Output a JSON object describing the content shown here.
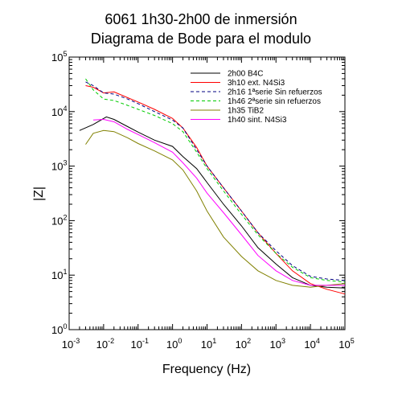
{
  "chart_data": {
    "type": "line",
    "title": "6061 1h30-2h00 de inmersión",
    "subtitle": "Diagrama de Bode para el modulo",
    "xlabel": "Frequency (Hz)",
    "ylabel": "|Z|",
    "xscale": "log",
    "yscale": "log",
    "xlim": [
      0.001,
      100000
    ],
    "ylim": [
      1,
      100000
    ],
    "x_ticks": [
      {
        "base": "10",
        "exp": "-3"
      },
      {
        "base": "10",
        "exp": "-2"
      },
      {
        "base": "10",
        "exp": "-1"
      },
      {
        "base": "10",
        "exp": "0"
      },
      {
        "base": "10",
        "exp": "1"
      },
      {
        "base": "10",
        "exp": "2"
      },
      {
        "base": "10",
        "exp": "3"
      },
      {
        "base": "10",
        "exp": "4"
      },
      {
        "base": "10",
        "exp": "5"
      }
    ],
    "y_ticks": [
      {
        "base": "10",
        "exp": "0"
      },
      {
        "base": "10",
        "exp": "1"
      },
      {
        "base": "10",
        "exp": "2"
      },
      {
        "base": "10",
        "exp": "3"
      },
      {
        "base": "10",
        "exp": "4"
      },
      {
        "base": "10",
        "exp": "5"
      }
    ],
    "grid": false,
    "legend_position": "top-right",
    "series": [
      {
        "name": "2h00 B4C",
        "color": "#000000",
        "dash": "solid",
        "x": [
          0.002,
          0.005,
          0.012,
          0.02,
          0.05,
          0.1,
          0.3,
          1,
          2,
          5,
          10,
          30,
          100,
          300,
          1000,
          3000,
          10000,
          30000,
          100000
        ],
        "y": [
          4500,
          5800,
          8000,
          7200,
          5300,
          4200,
          3000,
          2300,
          1500,
          900,
          500,
          200,
          80,
          32,
          16,
          9,
          6.5,
          6,
          5.8
        ]
      },
      {
        "name": "3h10 ext. N4Si3",
        "color": "#ff0000",
        "dash": "solid",
        "x": [
          0.003,
          0.005,
          0.01,
          0.02,
          0.05,
          0.1,
          0.3,
          1,
          2,
          5,
          10,
          30,
          100,
          300,
          1000,
          3000,
          10000,
          30000,
          100000
        ],
        "y": [
          30000,
          28000,
          22000,
          23000,
          18000,
          15000,
          11000,
          7500,
          5000,
          2200,
          1000,
          400,
          150,
          60,
          25,
          12,
          7,
          5.5,
          4.5
        ]
      },
      {
        "name": "2h16 1ªserie Sin refuerzos",
        "color": "#000080",
        "dash": "dashed",
        "x": [
          0.003,
          0.005,
          0.01,
          0.02,
          0.05,
          0.1,
          0.3,
          1,
          2,
          5,
          10,
          30,
          100,
          300,
          1000,
          3000,
          10000,
          30000,
          100000
        ],
        "y": [
          35000,
          30000,
          22000,
          21000,
          17000,
          14000,
          10000,
          7000,
          5000,
          2000,
          1000,
          400,
          150,
          60,
          28,
          15,
          9.5,
          8.5,
          8
        ]
      },
      {
        "name": "1h46 2ªserie sin refuerzos",
        "color": "#00cc00",
        "dash": "dashed",
        "x": [
          0.003,
          0.005,
          0.01,
          0.02,
          0.05,
          0.1,
          0.3,
          1,
          2,
          5,
          10,
          30,
          100,
          300,
          1000,
          3000,
          10000,
          30000,
          100000
        ],
        "y": [
          40000,
          25000,
          17000,
          16000,
          13000,
          11000,
          8500,
          6000,
          4300,
          1800,
          900,
          350,
          130,
          55,
          25,
          14,
          9,
          8,
          7.5
        ]
      },
      {
        "name": "1h35 TiB2",
        "color": "#808000",
        "dash": "solid",
        "x": [
          0.003,
          0.005,
          0.01,
          0.02,
          0.05,
          0.1,
          0.3,
          1,
          2,
          5,
          10,
          30,
          100,
          300,
          1000,
          3000,
          10000,
          30000,
          100000
        ],
        "y": [
          2500,
          4000,
          4500,
          4300,
          3300,
          2600,
          1900,
          1300,
          850,
          350,
          150,
          50,
          22,
          12,
          8,
          6.5,
          6,
          6.5,
          7
        ]
      },
      {
        "name": "1h40 sint. N4Si3",
        "color": "#ff00ff",
        "dash": "solid",
        "x": [
          0.005,
          0.01,
          0.02,
          0.05,
          0.1,
          0.3,
          1,
          2,
          5,
          10,
          30,
          100,
          300,
          1000,
          3000,
          10000,
          30000,
          100000
        ],
        "y": [
          7000,
          7200,
          6500,
          4700,
          3800,
          2700,
          1800,
          1150,
          600,
          320,
          140,
          55,
          23,
          12,
          8,
          6.5,
          6.5,
          6.5
        ]
      }
    ]
  }
}
